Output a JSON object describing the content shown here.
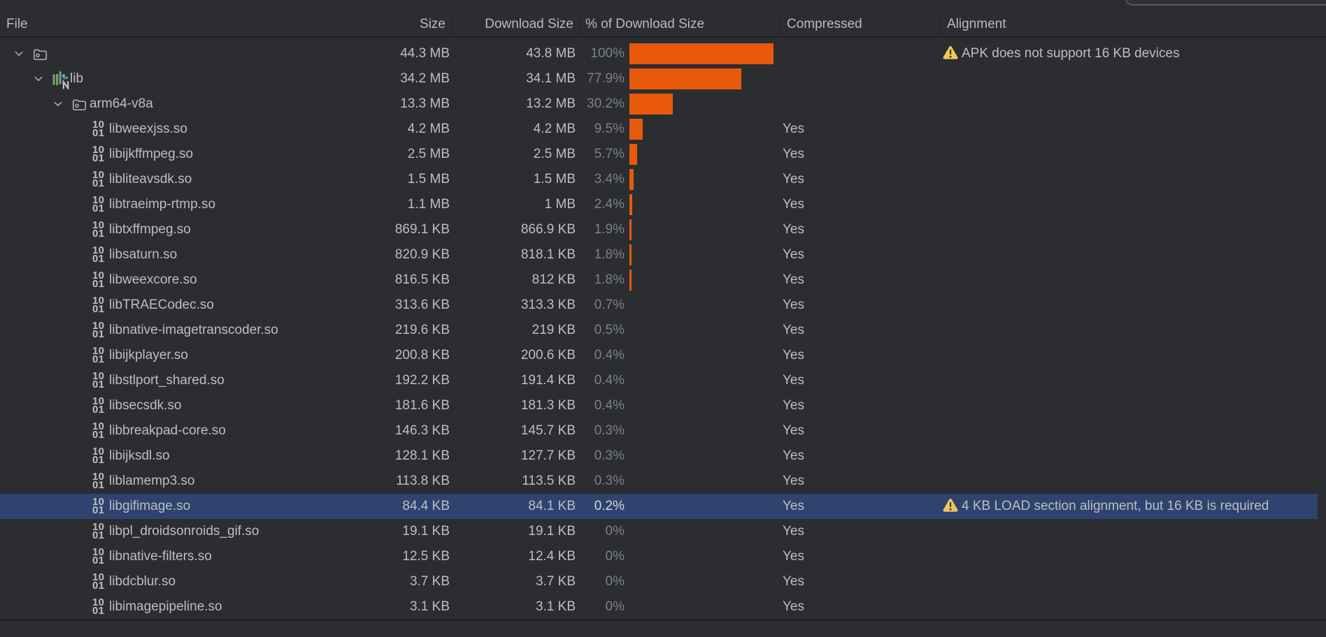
{
  "meta": {
    "app": "Android Studio",
    "view": "APK Analyzer file table"
  },
  "colors": {
    "background": "#2b2d30",
    "selection_background": "#2e436e",
    "bar_orange": "#e8590c",
    "warning_yellow": "#f2c55c",
    "text": "#bcbec4",
    "muted_text": "#7d818a",
    "grid_line": "#1e1f22",
    "popup_border": "#54575c"
  },
  "columns": [
    {
      "id": "file",
      "label": "File"
    },
    {
      "id": "size",
      "label": "Size"
    },
    {
      "id": "download_size",
      "label": "Download Size"
    },
    {
      "id": "pct_of_download",
      "label": "% of Download Size"
    },
    {
      "id": "compressed",
      "label": "Compressed"
    },
    {
      "id": "alignment",
      "label": "Alignment"
    }
  ],
  "rows": [
    {
      "name": "",
      "icon": "folder",
      "level": 0,
      "expanded": true,
      "size": "44.3 MB",
      "download_size": "43.8 MB",
      "pct": "100%",
      "pct_value": 100,
      "compressed": "",
      "alignment": "APK does not support 16 KB devices",
      "selected": false
    },
    {
      "name": "lib",
      "icon": "native-lib-folder",
      "level": 1,
      "expanded": true,
      "size": "34.2 MB",
      "download_size": "34.1 MB",
      "pct": "77.9%",
      "pct_value": 77.9,
      "compressed": "",
      "alignment": "",
      "selected": false
    },
    {
      "name": "arm64-v8a",
      "icon": "folder",
      "level": 2,
      "expanded": true,
      "size": "13.3 MB",
      "download_size": "13.2 MB",
      "pct": "30.2%",
      "pct_value": 30.2,
      "compressed": "",
      "alignment": "",
      "selected": false
    },
    {
      "name": "libweexjss.so",
      "icon": "binary",
      "level": 3,
      "expanded": false,
      "size": "4.2 MB",
      "download_size": "4.2 MB",
      "pct": "9.5%",
      "pct_value": 9.5,
      "compressed": "Yes",
      "alignment": "",
      "selected": false
    },
    {
      "name": "libijkffmpeg.so",
      "icon": "binary",
      "level": 3,
      "expanded": false,
      "size": "2.5 MB",
      "download_size": "2.5 MB",
      "pct": "5.7%",
      "pct_value": 5.7,
      "compressed": "Yes",
      "alignment": "",
      "selected": false
    },
    {
      "name": "libliteavsdk.so",
      "icon": "binary",
      "level": 3,
      "expanded": false,
      "size": "1.5 MB",
      "download_size": "1.5 MB",
      "pct": "3.4%",
      "pct_value": 3.4,
      "compressed": "Yes",
      "alignment": "",
      "selected": false
    },
    {
      "name": "libtraeimp-rtmp.so",
      "icon": "binary",
      "level": 3,
      "expanded": false,
      "size": "1.1 MB",
      "download_size": "1 MB",
      "pct": "2.4%",
      "pct_value": 2.4,
      "compressed": "Yes",
      "alignment": "",
      "selected": false
    },
    {
      "name": "libtxffmpeg.so",
      "icon": "binary",
      "level": 3,
      "expanded": false,
      "size": "869.1 KB",
      "download_size": "866.9 KB",
      "pct": "1.9%",
      "pct_value": 1.9,
      "compressed": "Yes",
      "alignment": "",
      "selected": false
    },
    {
      "name": "libsaturn.so",
      "icon": "binary",
      "level": 3,
      "expanded": false,
      "size": "820.9 KB",
      "download_size": "818.1 KB",
      "pct": "1.8%",
      "pct_value": 1.8,
      "compressed": "Yes",
      "alignment": "",
      "selected": false
    },
    {
      "name": "libweexcore.so",
      "icon": "binary",
      "level": 3,
      "expanded": false,
      "size": "816.5 KB",
      "download_size": "812 KB",
      "pct": "1.8%",
      "pct_value": 1.8,
      "compressed": "Yes",
      "alignment": "",
      "selected": false
    },
    {
      "name": "libTRAECodec.so",
      "icon": "binary",
      "level": 3,
      "expanded": false,
      "size": "313.6 KB",
      "download_size": "313.3 KB",
      "pct": "0.7%",
      "pct_value": 0.7,
      "compressed": "Yes",
      "alignment": "",
      "selected": false
    },
    {
      "name": "libnative-imagetranscoder.so",
      "icon": "binary",
      "level": 3,
      "expanded": false,
      "size": "219.6 KB",
      "download_size": "219 KB",
      "pct": "0.5%",
      "pct_value": 0.5,
      "compressed": "Yes",
      "alignment": "",
      "selected": false
    },
    {
      "name": "libijkplayer.so",
      "icon": "binary",
      "level": 3,
      "expanded": false,
      "size": "200.8 KB",
      "download_size": "200.6 KB",
      "pct": "0.4%",
      "pct_value": 0.4,
      "compressed": "Yes",
      "alignment": "",
      "selected": false
    },
    {
      "name": "libstlport_shared.so",
      "icon": "binary",
      "level": 3,
      "expanded": false,
      "size": "192.2 KB",
      "download_size": "191.4 KB",
      "pct": "0.4%",
      "pct_value": 0.4,
      "compressed": "Yes",
      "alignment": "",
      "selected": false
    },
    {
      "name": "libsecsdk.so",
      "icon": "binary",
      "level": 3,
      "expanded": false,
      "size": "181.6 KB",
      "download_size": "181.3 KB",
      "pct": "0.4%",
      "pct_value": 0.4,
      "compressed": "Yes",
      "alignment": "",
      "selected": false
    },
    {
      "name": "libbreakpad-core.so",
      "icon": "binary",
      "level": 3,
      "expanded": false,
      "size": "146.3 KB",
      "download_size": "145.7 KB",
      "pct": "0.3%",
      "pct_value": 0.3,
      "compressed": "Yes",
      "alignment": "",
      "selected": false
    },
    {
      "name": "libijksdl.so",
      "icon": "binary",
      "level": 3,
      "expanded": false,
      "size": "128.1 KB",
      "download_size": "127.7 KB",
      "pct": "0.3%",
      "pct_value": 0.3,
      "compressed": "Yes",
      "alignment": "",
      "selected": false
    },
    {
      "name": "liblamemp3.so",
      "icon": "binary",
      "level": 3,
      "expanded": false,
      "size": "113.8 KB",
      "download_size": "113.5 KB",
      "pct": "0.3%",
      "pct_value": 0.3,
      "compressed": "Yes",
      "alignment": "",
      "selected": false
    },
    {
      "name": "libgifimage.so",
      "icon": "binary",
      "level": 3,
      "expanded": false,
      "size": "84.4 KB",
      "download_size": "84.1 KB",
      "pct": "0.2%",
      "pct_value": 0.2,
      "compressed": "Yes",
      "alignment": "4 KB LOAD section alignment, but 16 KB is required",
      "selected": true
    },
    {
      "name": "libpl_droidsonroids_gif.so",
      "icon": "binary",
      "level": 3,
      "expanded": false,
      "size": "19.1 KB",
      "download_size": "19.1 KB",
      "pct": "0%",
      "pct_value": 0,
      "compressed": "Yes",
      "alignment": "",
      "selected": false
    },
    {
      "name": "libnative-filters.so",
      "icon": "binary",
      "level": 3,
      "expanded": false,
      "size": "12.5 KB",
      "download_size": "12.4 KB",
      "pct": "0%",
      "pct_value": 0,
      "compressed": "Yes",
      "alignment": "",
      "selected": false
    },
    {
      "name": "libdcblur.so",
      "icon": "binary",
      "level": 3,
      "expanded": false,
      "size": "3.7 KB",
      "download_size": "3.7 KB",
      "pct": "0%",
      "pct_value": 0,
      "compressed": "Yes",
      "alignment": "",
      "selected": false
    },
    {
      "name": "libimagepipeline.so",
      "icon": "binary",
      "level": 3,
      "expanded": false,
      "size": "3.1 KB",
      "download_size": "3.1 KB",
      "pct": "0%",
      "pct_value": 0,
      "compressed": "Yes",
      "alignment": "",
      "selected": false
    }
  ],
  "layout_note": "binary icon glyph text",
  "binary_icon": {
    "line1": "10",
    "line2": "01"
  }
}
